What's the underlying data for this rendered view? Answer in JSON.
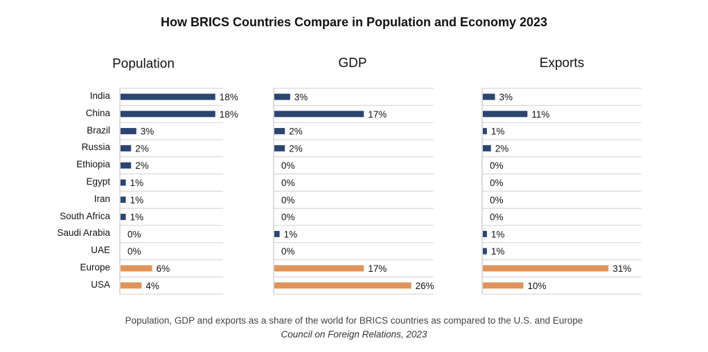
{
  "title": "How BRICS Countries Compare in Population and Economy 2023",
  "caption": "Population, GDP and exports as a share of the world for BRICS countries as compared to the U.S. and Europe",
  "source": "Council on Foreign Relations, 2023",
  "colors": {
    "brics": "#2b4570",
    "comparison": "#e0945a",
    "grid": "#d0d0d0",
    "axis": "#bbbbbb"
  },
  "chart_data": [
    {
      "type": "bar",
      "orientation": "horizontal",
      "title": "Population",
      "categories": [
        "India",
        "China",
        "Brazil",
        "Russia",
        "Ethiopia",
        "Egypt",
        "Iran",
        "South Africa",
        "Saudi Arabia",
        "UAE",
        "Europe",
        "USA"
      ],
      "values": [
        18,
        18,
        3,
        2,
        2,
        1,
        1,
        1,
        0,
        0,
        6,
        4
      ],
      "value_labels": [
        "18%",
        "18%",
        "3%",
        "2%",
        "2%",
        "1%",
        "1%",
        "1%",
        "0%",
        "0%",
        "6%",
        "4%"
      ],
      "unit": "%",
      "grid": true
    },
    {
      "type": "bar",
      "orientation": "horizontal",
      "title": "GDP",
      "categories": [
        "India",
        "China",
        "Brazil",
        "Russia",
        "Ethiopia",
        "Egypt",
        "Iran",
        "South Africa",
        "Saudi Arabia",
        "UAE",
        "Europe",
        "USA"
      ],
      "values": [
        3,
        17,
        2,
        2,
        0,
        0,
        0,
        0,
        1,
        0,
        17,
        26
      ],
      "value_labels": [
        "3%",
        "17%",
        "2%",
        "2%",
        "0%",
        "0%",
        "0%",
        "0%",
        "1%",
        "0%",
        "17%",
        "26%"
      ],
      "unit": "%",
      "grid": true
    },
    {
      "type": "bar",
      "orientation": "horizontal",
      "title": "Exports",
      "categories": [
        "India",
        "China",
        "Brazil",
        "Russia",
        "Ethiopia",
        "Egypt",
        "Iran",
        "South Africa",
        "Saudi Arabia",
        "UAE",
        "Europe",
        "USA"
      ],
      "values": [
        3,
        11,
        1,
        2,
        0,
        0,
        0,
        0,
        1,
        1,
        31,
        10
      ],
      "value_labels": [
        "3%",
        "11%",
        "1%",
        "2%",
        "0%",
        "0%",
        "0%",
        "0%",
        "1%",
        "1%",
        "31%",
        "10%"
      ],
      "unit": "%",
      "grid": true
    }
  ]
}
